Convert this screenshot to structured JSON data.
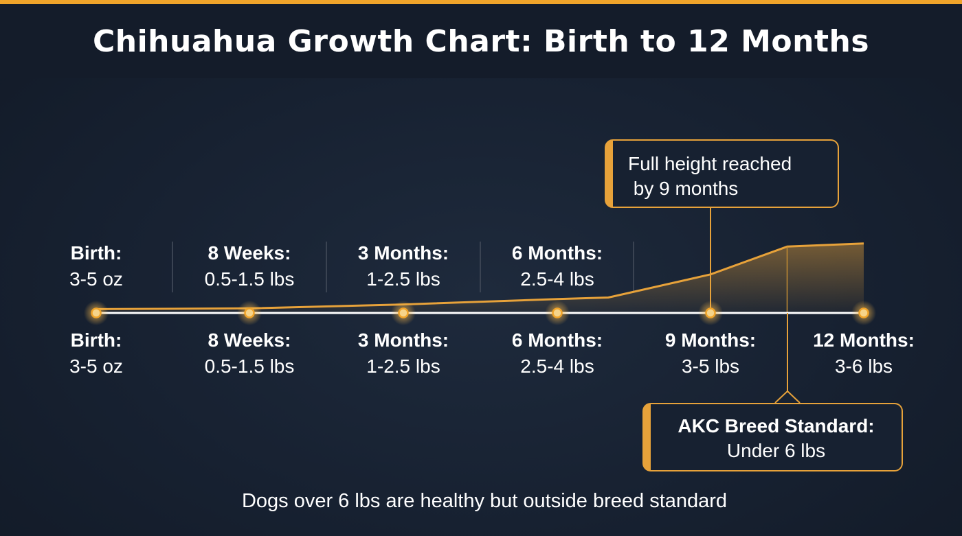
{
  "title": "Chihuahua Growth Chart: Birth to 12 Months",
  "colors": {
    "accent": "#f0a42a",
    "background": "#172131",
    "line": "#ffffff"
  },
  "chart_data": {
    "type": "line",
    "title": "Chihuahua Growth Chart: Birth to 12 Months",
    "x_unit": "months",
    "milestones": [
      {
        "label": "Birth:",
        "range": "3-5 oz",
        "month": 0
      },
      {
        "label": "8 Weeks:",
        "range": "0.5-1.5 lbs",
        "month": 2
      },
      {
        "label": "3 Months:",
        "range": "1-2.5 lbs",
        "month": 3
      },
      {
        "label": "6 Months:",
        "range": "2.5-4 lbs",
        "month": 6
      },
      {
        "label": "9 Months:",
        "range": "3-5 lbs",
        "month": 9
      },
      {
        "label": "12 Months:",
        "range": "3-6 lbs",
        "month": 12
      }
    ],
    "upper_labels": [
      {
        "label": "Birth:",
        "range": "3-5 oz"
      },
      {
        "label": "8 Weeks:",
        "range": "0.5-1.5 lbs"
      },
      {
        "label": "3 Months:",
        "range": "1-2.5 lbs"
      },
      {
        "label": "6 Months:",
        "range": "2.5-4 lbs"
      }
    ],
    "growth_curve": {
      "x": [
        0,
        2,
        3,
        6,
        7,
        9,
        10.5,
        12
      ],
      "y_lbs": [
        0.25,
        0.3,
        0.55,
        0.9,
        1.0,
        2.5,
        4.3,
        4.5
      ]
    },
    "annotations": {
      "top": "Full height reached\n by 9 months",
      "bottom_title": "AKC Breed Standard:",
      "bottom_value": "Under 6 lbs"
    },
    "footnote": "Dogs over 6 lbs are healthy but outside breed standard"
  }
}
